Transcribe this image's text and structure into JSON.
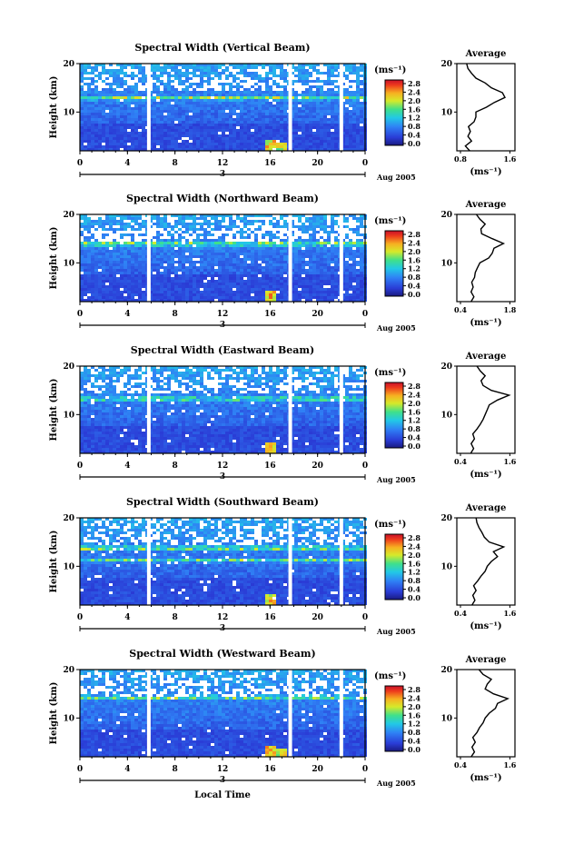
{
  "figure": {
    "x_axis_label": "Local Time",
    "date_label": "Aug 2005",
    "day_label": "3",
    "y_axis_label": "Height (km)",
    "colorbar_unit": "(ms⁻¹)",
    "colorbar_ticks": [
      "2.8",
      "2.4",
      "2.0",
      "1.6",
      "1.2",
      "0.8",
      "0.4",
      "0.0"
    ],
    "x_ticks": [
      "0",
      "4",
      "8",
      "12",
      "16",
      "20",
      "0"
    ],
    "y_ticks": [
      "20",
      "10"
    ],
    "avg_title": "Average",
    "avg_xlabel": "(ms⁻¹)"
  },
  "chart_data": [
    {
      "type": "heatmap",
      "title": "Spectral Width (Vertical Beam)",
      "xlabel": "Local Time",
      "ylabel": "Height (km)",
      "x_range_hours": [
        0,
        24
      ],
      "y_range_km": [
        2,
        20
      ],
      "colorbar_range": [
        0.0,
        3.0
      ],
      "data_gaps_hours": [
        5.8,
        17.7,
        22.0
      ],
      "features": [
        {
          "type": "layer",
          "height_km": 13.2,
          "value": 2.2
        },
        {
          "type": "patch",
          "time_h": 16.0,
          "height_km": 3.0,
          "value": 2.6
        },
        {
          "type": "patch",
          "time_h": 16.8,
          "height_km": 2.8,
          "value": 2.3
        }
      ],
      "average_profile": {
        "title": "Average",
        "xlabel": "(ms⁻¹)",
        "x_ticks": [
          "0.8",
          "1.6"
        ],
        "x_range": [
          0.8,
          1.6
        ],
        "y_ticks": [
          "20",
          "10"
        ],
        "height_km": [
          2,
          3,
          4,
          5,
          6,
          7,
          8,
          9,
          10,
          11,
          12,
          13,
          14,
          15,
          16,
          17,
          18,
          19,
          20
        ],
        "width_ms": [
          0.95,
          0.88,
          0.98,
          0.92,
          0.96,
          0.93,
          1.02,
          1.05,
          1.05,
          1.22,
          1.35,
          1.52,
          1.48,
          1.3,
          1.2,
          1.05,
          0.98,
          0.92,
          0.9
        ]
      }
    },
    {
      "type": "heatmap",
      "title": "Spectral Width (Northward Beam)",
      "xlabel": "Local Time",
      "ylabel": "Height (km)",
      "x_range_hours": [
        0,
        24
      ],
      "y_range_km": [
        2,
        20
      ],
      "colorbar_range": [
        0.0,
        3.0
      ],
      "data_gaps_hours": [
        5.8,
        17.7,
        22.0
      ],
      "features": [
        {
          "type": "layer",
          "height_km": 14.2,
          "value": 2.3
        },
        {
          "type": "patch",
          "time_h": 16.0,
          "height_km": 3.0,
          "value": 2.7
        }
      ],
      "average_profile": {
        "title": "Average",
        "xlabel": "(ms⁻¹)",
        "x_ticks": [
          "0.4",
          "1.8"
        ],
        "x_range": [
          0.4,
          1.8
        ],
        "y_ticks": [
          "20",
          "10"
        ],
        "height_km": [
          2,
          3,
          4,
          5,
          6,
          7,
          8,
          9,
          10,
          11,
          12,
          13,
          14,
          15,
          16,
          17,
          18,
          19,
          20
        ],
        "width_ms": [
          0.7,
          0.78,
          0.7,
          0.76,
          0.72,
          0.8,
          0.82,
          0.88,
          0.95,
          1.2,
          1.3,
          1.35,
          1.62,
          1.3,
          1.0,
          0.98,
          1.1,
          0.95,
          0.85
        ]
      }
    },
    {
      "type": "heatmap",
      "title": "Spectral Width (Eastward Beam)",
      "xlabel": "Local Time",
      "ylabel": "Height (km)",
      "x_range_hours": [
        0,
        24
      ],
      "y_range_km": [
        2,
        20
      ],
      "colorbar_range": [
        0.0,
        3.0
      ],
      "data_gaps_hours": [
        5.8,
        17.7,
        22.0
      ],
      "features": [
        {
          "type": "layer",
          "height_km": 13.5,
          "value": 2.2
        },
        {
          "type": "patch",
          "time_h": 16.0,
          "height_km": 3.0,
          "value": 2.5
        }
      ],
      "average_profile": {
        "title": "Average",
        "xlabel": "(ms⁻¹)",
        "x_ticks": [
          "0.4",
          "1.6"
        ],
        "x_range": [
          0.4,
          1.6
        ],
        "y_ticks": [
          "20",
          "10"
        ],
        "height_km": [
          2,
          3,
          4,
          5,
          6,
          7,
          8,
          9,
          10,
          11,
          12,
          13,
          14,
          15,
          16,
          17,
          18,
          19,
          20
        ],
        "width_ms": [
          0.65,
          0.72,
          0.66,
          0.74,
          0.7,
          0.8,
          0.88,
          0.95,
          1.0,
          1.05,
          1.1,
          1.3,
          1.58,
          1.15,
          0.95,
          0.9,
          1.0,
          0.88,
          0.8
        ]
      }
    },
    {
      "type": "heatmap",
      "title": "Spectral Width (Southward Beam)",
      "xlabel": "Local Time",
      "ylabel": "Height (km)",
      "x_range_hours": [
        0,
        24
      ],
      "y_range_km": [
        2,
        20
      ],
      "colorbar_range": [
        0.0,
        3.0
      ],
      "data_gaps_hours": [
        5.8,
        17.7,
        22.0
      ],
      "features": [
        {
          "type": "layer",
          "height_km": 14.0,
          "value": 2.3
        },
        {
          "type": "layer",
          "height_km": 11.5,
          "value": 2.0
        },
        {
          "type": "patch",
          "time_h": 16.0,
          "height_km": 3.0,
          "value": 2.6
        }
      ],
      "average_profile": {
        "title": "Average",
        "xlabel": "(ms⁻¹)",
        "x_ticks": [
          "0.4",
          "1.6"
        ],
        "x_range": [
          0.4,
          1.6
        ],
        "y_ticks": [
          "20",
          "10"
        ],
        "height_km": [
          2,
          3,
          4,
          5,
          6,
          7,
          8,
          9,
          10,
          11,
          12,
          13,
          14,
          15,
          16,
          17,
          18,
          19,
          20
        ],
        "width_ms": [
          0.68,
          0.75,
          0.7,
          0.78,
          0.72,
          0.82,
          0.9,
          1.0,
          1.05,
          1.15,
          1.3,
          1.2,
          1.45,
          1.1,
          0.98,
          0.92,
          0.85,
          0.8,
          0.78
        ]
      }
    },
    {
      "type": "heatmap",
      "title": "Spectral Width (Westward Beam)",
      "xlabel": "Local Time",
      "ylabel": "Height (km)",
      "x_range_hours": [
        0,
        24
      ],
      "y_range_km": [
        2,
        20
      ],
      "colorbar_range": [
        0.0,
        3.0
      ],
      "data_gaps_hours": [
        5.8,
        17.7,
        22.0
      ],
      "features": [
        {
          "type": "layer",
          "height_km": 14.5,
          "value": 2.2
        },
        {
          "type": "patch",
          "time_h": 16.0,
          "height_km": 3.0,
          "value": 2.7
        },
        {
          "type": "patch",
          "time_h": 16.8,
          "height_km": 2.7,
          "value": 2.4
        }
      ],
      "average_profile": {
        "title": "Average",
        "xlabel": "(ms⁻¹)",
        "x_ticks": [
          "0.4",
          "1.6"
        ],
        "x_range": [
          0.4,
          1.6
        ],
        "y_ticks": [
          "20",
          "10"
        ],
        "height_km": [
          2,
          3,
          4,
          5,
          6,
          7,
          8,
          9,
          10,
          11,
          12,
          13,
          14,
          15,
          16,
          17,
          18,
          19,
          20
        ],
        "width_ms": [
          0.66,
          0.74,
          0.68,
          0.76,
          0.7,
          0.8,
          0.86,
          0.95,
          1.0,
          1.1,
          1.25,
          1.3,
          1.55,
          1.2,
          1.0,
          1.05,
          1.15,
          0.95,
          0.85
        ]
      }
    }
  ]
}
